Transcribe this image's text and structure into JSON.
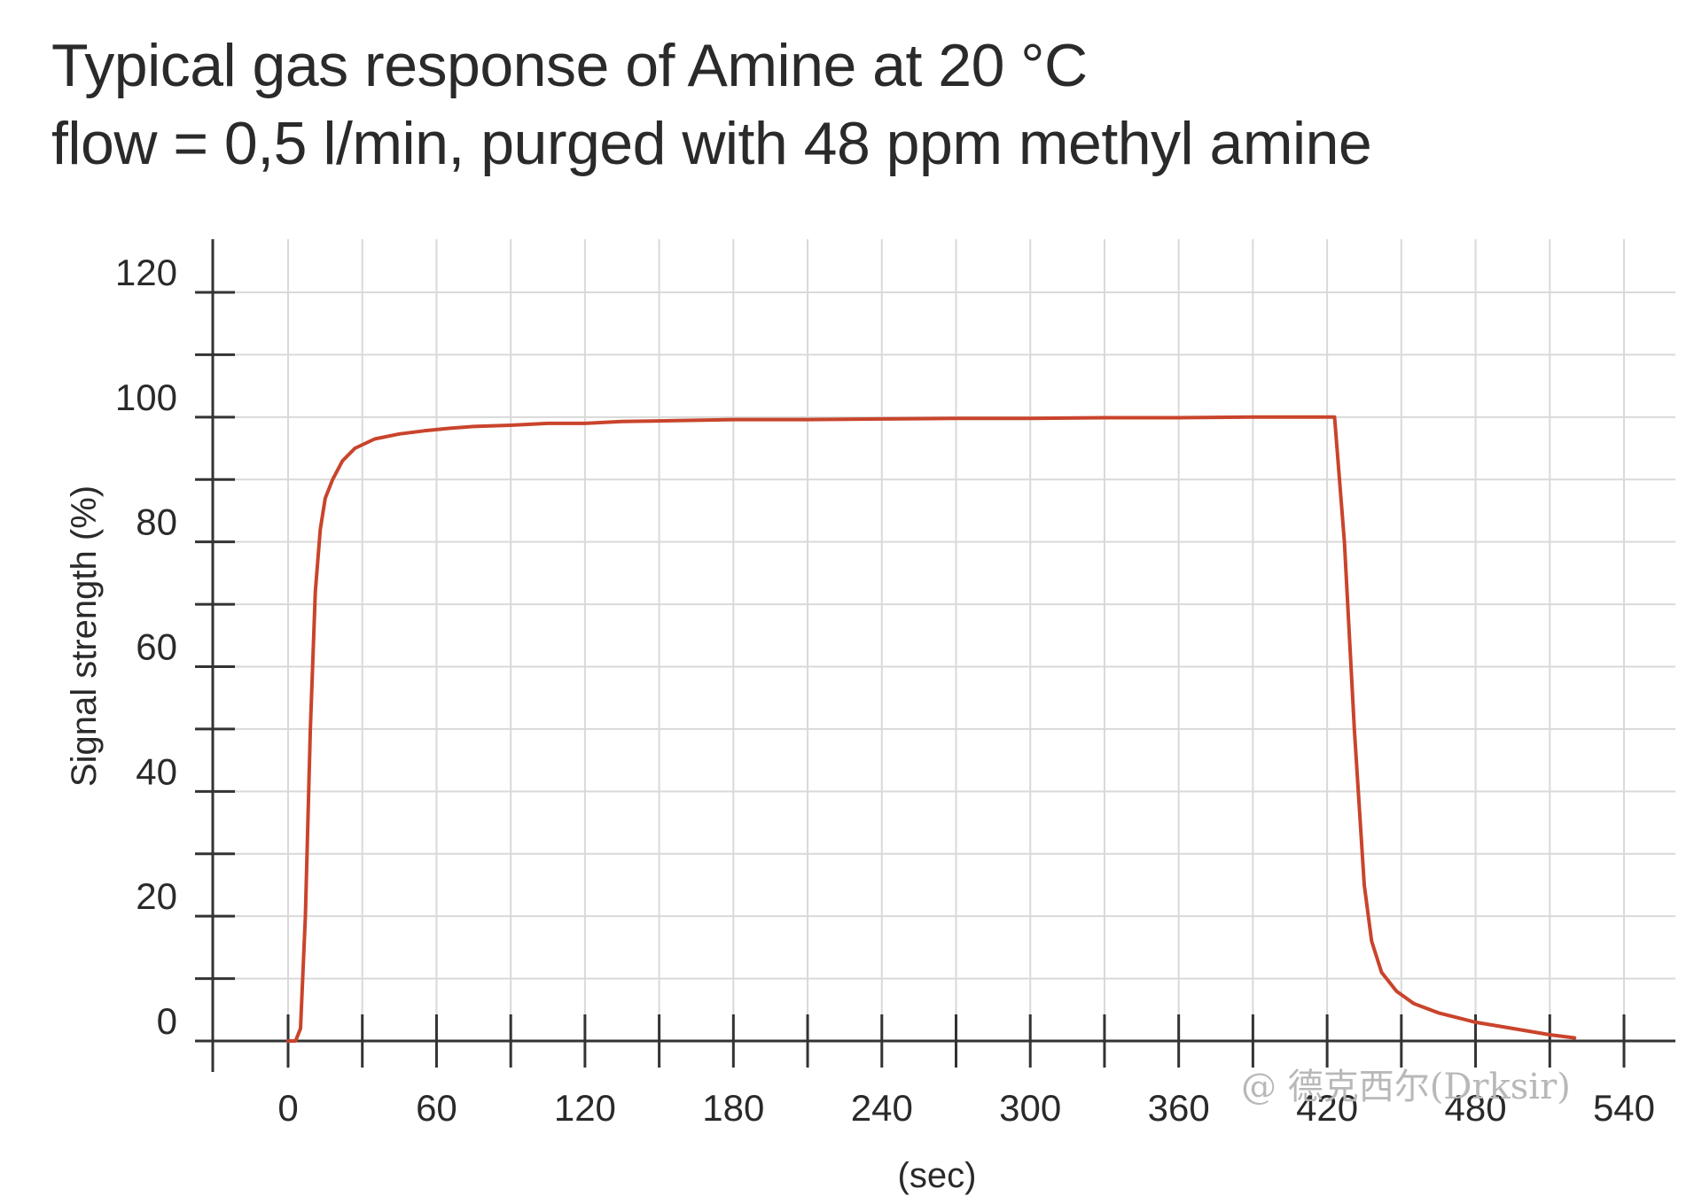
{
  "header": {
    "title_line1": "Typical gas response of Amine at 20 °C",
    "title_line2": "flow = 0,5 l/min, purged with 48 ppm methyl amine"
  },
  "watermark": "@ 德克西尔(Drksir)",
  "colors": {
    "series": "#c9442c",
    "grid": "#d9d9d9",
    "axis": "#333333"
  },
  "chart_data": {
    "type": "line",
    "title": "Typical gas response of Amine at 20 °C",
    "subtitle": "flow = 0,5 l/min, purged with 48 ppm methyl amine",
    "xlabel": "(sec)",
    "ylabel": "Signal strength (%)",
    "xlim": [
      -30,
      560
    ],
    "ylim": [
      0,
      122
    ],
    "x_ticks": [
      0,
      60,
      120,
      180,
      240,
      300,
      360,
      420,
      480,
      540
    ],
    "y_ticks": [
      0,
      20,
      40,
      60,
      80,
      100,
      120
    ],
    "grid": true,
    "series": [
      {
        "x": [
          0,
          3,
          5,
          7,
          9,
          11,
          13,
          15,
          18,
          22,
          27,
          35,
          45,
          55,
          65,
          75,
          90,
          105,
          120,
          135,
          150,
          165,
          180,
          210,
          240,
          270,
          300,
          330,
          360,
          390,
          410,
          420,
          423,
          427,
          431,
          435,
          438,
          442,
          448,
          455,
          465,
          480,
          495,
          510,
          520
        ],
        "y": [
          0,
          0,
          2,
          20,
          50,
          72,
          82,
          87,
          90,
          93,
          95,
          96.5,
          97.3,
          97.8,
          98.2,
          98.5,
          98.7,
          99,
          99,
          99.3,
          99.4,
          99.5,
          99.6,
          99.6,
          99.7,
          99.8,
          99.8,
          99.9,
          99.9,
          100,
          100,
          100,
          100,
          80,
          50,
          25,
          16,
          11,
          8,
          6,
          4.5,
          3,
          2,
          1,
          0.5
        ]
      }
    ]
  }
}
